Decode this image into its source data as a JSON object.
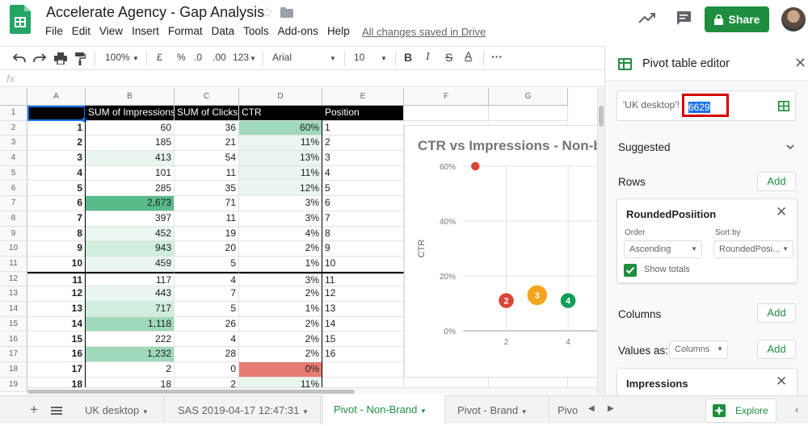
{
  "app": {
    "title": "Accelerate Agency - Gap Analysis",
    "save_status": "All changes saved in Drive",
    "share_label": "Share"
  },
  "menu": [
    "File",
    "Edit",
    "View",
    "Insert",
    "Format",
    "Data",
    "Tools",
    "Add-ons",
    "Help"
  ],
  "toolbar": {
    "zoom": "100%",
    "currency": "£",
    "percent": "%",
    "dec_dec": ".0",
    "inc_dec": ".00",
    "more_formats": "123",
    "font": "Arial",
    "font_size": "10",
    "bold": "B",
    "italic": "I",
    "strike": "S",
    "text_color": "A",
    "more": "···"
  },
  "formula_bar": {
    "fx": "fx"
  },
  "grid": {
    "columns": [
      "A",
      "B",
      "C",
      "D",
      "E",
      "F",
      "G"
    ],
    "header_row": {
      "b": "SUM of Impressions",
      "c": "SUM of Clicks",
      "d": "CTR",
      "e": "Position"
    },
    "rows": [
      {
        "n": "1",
        "a": "",
        "b": "",
        "c": "",
        "d": "",
        "e": ""
      },
      {
        "n": "2",
        "a": "1",
        "b": "60",
        "c": "36",
        "d": "60%",
        "e": "1"
      },
      {
        "n": "3",
        "a": "2",
        "b": "185",
        "c": "21",
        "d": "11%",
        "e": "2"
      },
      {
        "n": "4",
        "a": "3",
        "b": "413",
        "c": "54",
        "d": "13%",
        "e": "3"
      },
      {
        "n": "5",
        "a": "4",
        "b": "101",
        "c": "11",
        "d": "11%",
        "e": "4"
      },
      {
        "n": "6",
        "a": "5",
        "b": "285",
        "c": "35",
        "d": "12%",
        "e": "5"
      },
      {
        "n": "7",
        "a": "6",
        "b": "2,673",
        "c": "71",
        "d": "3%",
        "e": "6"
      },
      {
        "n": "8",
        "a": "7",
        "b": "397",
        "c": "11",
        "d": "3%",
        "e": "7"
      },
      {
        "n": "9",
        "a": "8",
        "b": "452",
        "c": "19",
        "d": "4%",
        "e": "8"
      },
      {
        "n": "10",
        "a": "9",
        "b": "943",
        "c": "20",
        "d": "2%",
        "e": "9"
      },
      {
        "n": "11",
        "a": "10",
        "b": "459",
        "c": "5",
        "d": "1%",
        "e": "10"
      },
      {
        "n": "12",
        "a": "11",
        "b": "117",
        "c": "4",
        "d": "3%",
        "e": "11"
      },
      {
        "n": "13",
        "a": "12",
        "b": "443",
        "c": "7",
        "d": "2%",
        "e": "12"
      },
      {
        "n": "14",
        "a": "13",
        "b": "717",
        "c": "5",
        "d": "1%",
        "e": "13"
      },
      {
        "n": "15",
        "a": "14",
        "b": "1,118",
        "c": "26",
        "d": "2%",
        "e": "14"
      },
      {
        "n": "16",
        "a": "15",
        "b": "222",
        "c": "4",
        "d": "2%",
        "e": "15"
      },
      {
        "n": "17",
        "a": "16",
        "b": "1,232",
        "c": "28",
        "d": "2%",
        "e": "16"
      },
      {
        "n": "18",
        "a": "17",
        "b": "2",
        "c": "0",
        "d": "0%",
        "e": ""
      },
      {
        "n": "19",
        "a": "18",
        "b": "18",
        "c": "2",
        "d": "11%",
        "e": ""
      }
    ],
    "heat_colors": {
      "strong": "#57bb8a",
      "mid": "#9fd9b9",
      "light": "#cfeedd",
      "faint": "#e8f6ee",
      "red": "#e67c73"
    }
  },
  "chart_data": {
    "type": "scatter",
    "title": "CTR vs Impressions - Non-b",
    "xlabel": "",
    "ylabel": "CTR",
    "yticks": [
      "60%",
      "40%",
      "20%",
      "0%"
    ],
    "xticks": [
      "2",
      "4"
    ],
    "ylim": [
      0,
      60
    ],
    "points": [
      {
        "label": "2",
        "x": 2,
        "y": 11,
        "color": "#db4437"
      },
      {
        "label": "3",
        "x": 3,
        "y": 13,
        "color": "#f4a41d"
      },
      {
        "label": "4",
        "x": 4,
        "y": 11,
        "color": "#0f9d58"
      },
      {
        "label": "",
        "x": 1,
        "y": 60,
        "color": "#db4437"
      }
    ]
  },
  "panel": {
    "title": "Pivot table editor",
    "range_prefix": "'UK desktop'!",
    "range_selected": "6629",
    "suggested": "Suggested",
    "rows_label": "Rows",
    "add": "Add",
    "rows_card": {
      "field": "RoundedPosiition",
      "order_label": "Order",
      "order_value": "Ascending",
      "sort_label": "Sort by",
      "sort_value": "RoundedPosi...",
      "show_totals": "Show totals"
    },
    "columns_label": "Columns",
    "values_as_label": "Values as:",
    "values_as_value": "Columns",
    "values_card": {
      "field": "Impressions"
    }
  },
  "sheet_tabs": [
    {
      "label": "UK desktop",
      "active": false
    },
    {
      "label": "SAS 2019-04-17 12:47:31",
      "active": false
    },
    {
      "label": "Pivot - Non-Brand",
      "active": true
    },
    {
      "label": "Pivot - Brand",
      "active": false
    },
    {
      "label": "Pivo",
      "active": false
    }
  ],
  "explore_label": "Explore",
  "colors": {
    "green": "#1e8e3e",
    "selection_red": "#d50000",
    "selection_blue": "#1a73e8"
  }
}
